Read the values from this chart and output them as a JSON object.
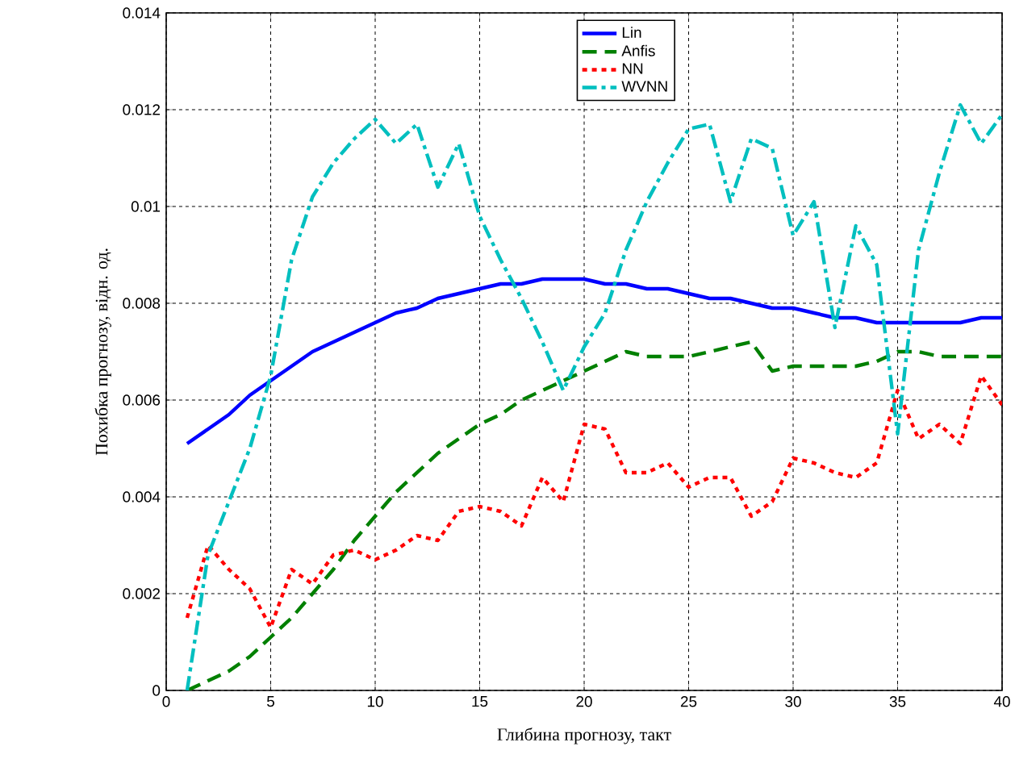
{
  "chart_data": {
    "type": "line",
    "xlabel": "Глибина прогнозу, такт",
    "ylabel": "Похибка прогнозу, відн. од.",
    "x": [
      1,
      2,
      3,
      4,
      5,
      6,
      7,
      8,
      9,
      10,
      11,
      12,
      13,
      14,
      15,
      16,
      17,
      18,
      19,
      20,
      21,
      22,
      23,
      24,
      25,
      26,
      27,
      28,
      29,
      30,
      31,
      32,
      33,
      34,
      35,
      36,
      37,
      38,
      39,
      40
    ],
    "series": [
      {
        "name": "Lin",
        "color": "#0000ff",
        "line_style": "solid",
        "values": [
          0.0051,
          0.0054,
          0.0057,
          0.0061,
          0.0064,
          0.0067,
          0.007,
          0.0072,
          0.0074,
          0.0076,
          0.0078,
          0.0079,
          0.0081,
          0.0082,
          0.0083,
          0.0084,
          0.0084,
          0.0085,
          0.0085,
          0.0085,
          0.0084,
          0.0084,
          0.0083,
          0.0083,
          0.0082,
          0.0081,
          0.0081,
          0.008,
          0.0079,
          0.0079,
          0.0078,
          0.0077,
          0.0077,
          0.0076,
          0.0076,
          0.0076,
          0.0076,
          0.0076,
          0.0077,
          0.0077
        ]
      },
      {
        "name": "Anfis",
        "color": "#008000",
        "line_style": "dashed",
        "values": [
          0.0,
          0.0002,
          0.0004,
          0.0007,
          0.0011,
          0.0015,
          0.002,
          0.0025,
          0.0031,
          0.0036,
          0.0041,
          0.0045,
          0.0049,
          0.0052,
          0.0055,
          0.0057,
          0.006,
          0.0062,
          0.0064,
          0.0066,
          0.0068,
          0.007,
          0.0069,
          0.0069,
          0.0069,
          0.007,
          0.0071,
          0.0072,
          0.0066,
          0.0067,
          0.0067,
          0.0067,
          0.0067,
          0.0068,
          0.007,
          0.007,
          0.0069,
          0.0069,
          0.0069,
          0.0069
        ]
      },
      {
        "name": "NN",
        "color": "#ff0000",
        "line_style": "dotted",
        "values": [
          0.0015,
          0.003,
          0.0025,
          0.0021,
          0.0013,
          0.0025,
          0.0022,
          0.0028,
          0.0029,
          0.0027,
          0.0029,
          0.0032,
          0.0031,
          0.0037,
          0.0038,
          0.0037,
          0.0034,
          0.0044,
          0.0039,
          0.0055,
          0.0054,
          0.0045,
          0.0045,
          0.0047,
          0.0042,
          0.0044,
          0.0044,
          0.0036,
          0.0039,
          0.0048,
          0.0047,
          0.0045,
          0.0044,
          0.0047,
          0.0062,
          0.0052,
          0.0055,
          0.0051,
          0.0065,
          0.0059
        ]
      },
      {
        "name": "WVNN",
        "color": "#00bfbf",
        "line_style": "dashdot",
        "values": [
          0.0,
          0.0028,
          0.0039,
          0.005,
          0.0065,
          0.0089,
          0.0102,
          0.0109,
          0.0114,
          0.0118,
          0.0113,
          0.0117,
          0.0104,
          0.0113,
          0.0098,
          0.0089,
          0.0081,
          0.0072,
          0.0062,
          0.0071,
          0.0078,
          0.0091,
          0.0101,
          0.0109,
          0.0116,
          0.0117,
          0.0101,
          0.0114,
          0.0112,
          0.0094,
          0.0101,
          0.0075,
          0.0096,
          0.0088,
          0.0053,
          0.0091,
          0.0107,
          0.0121,
          0.0113,
          0.0119
        ]
      }
    ],
    "xlim": [
      0,
      40
    ],
    "ylim": [
      0,
      0.014
    ],
    "xticks": [
      0,
      5,
      10,
      15,
      20,
      25,
      30,
      35,
      40
    ],
    "yticks": [
      0,
      0.002,
      0.004,
      0.006,
      0.008,
      0.01,
      0.012,
      0.014
    ],
    "grid": true,
    "legend": "top",
    "marker": "none"
  }
}
